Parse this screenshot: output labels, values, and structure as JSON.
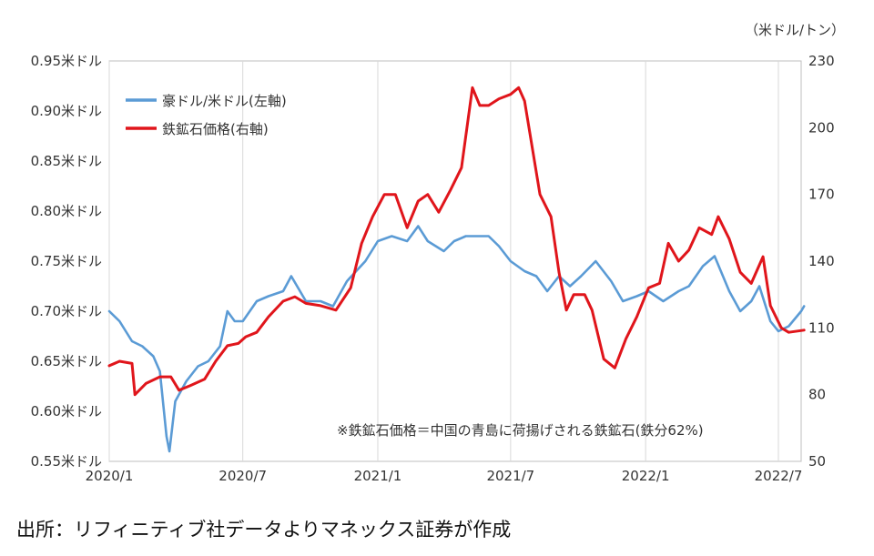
{
  "chart_data": {
    "type": "line",
    "right_axis_unit": "（米ドル/トン）",
    "x_ticks": [
      "2020/1",
      "2020/7",
      "2021/1",
      "2021/7",
      "2022/1",
      "2022/7"
    ],
    "x_tick_dates": [
      "2020-01",
      "2020-07",
      "2021-01",
      "2021-07",
      "2022-01",
      "2022-07"
    ],
    "x_range": [
      "2020-01",
      "2022-08"
    ],
    "left_axis": {
      "ylim": [
        0.55,
        0.95
      ],
      "ticks": [
        0.55,
        0.6,
        0.65,
        0.7,
        0.75,
        0.8,
        0.85,
        0.9,
        0.95
      ],
      "tick_labels": [
        "0.55米ドル",
        "0.60米ドル",
        "0.65米ドル",
        "0.70米ドル",
        "0.75米ドル",
        "0.80米ドル",
        "0.85米ドル",
        "0.90米ドル",
        "0.95米ドル"
      ]
    },
    "right_axis": {
      "ylim": [
        50,
        230
      ],
      "ticks": [
        50,
        80,
        110,
        140,
        170,
        200,
        230
      ],
      "tick_labels": [
        "50",
        "80",
        "110",
        "140",
        "170",
        "200",
        "230"
      ]
    },
    "grid": "vertical",
    "legend_position": "top-left",
    "series": [
      {
        "name": "豪ドル/米ドル(左軸)",
        "axis": "left",
        "color": "#5b9bd5",
        "points": [
          [
            "2020-01-01",
            0.7
          ],
          [
            "2020-01-15",
            0.69
          ],
          [
            "2020-02-01",
            0.67
          ],
          [
            "2020-02-15",
            0.665
          ],
          [
            "2020-03-01",
            0.655
          ],
          [
            "2020-03-10",
            0.64
          ],
          [
            "2020-03-19",
            0.575
          ],
          [
            "2020-03-23",
            0.56
          ],
          [
            "2020-03-31",
            0.61
          ],
          [
            "2020-04-15",
            0.63
          ],
          [
            "2020-05-01",
            0.645
          ],
          [
            "2020-05-15",
            0.65
          ],
          [
            "2020-05-31",
            0.665
          ],
          [
            "2020-06-10",
            0.7
          ],
          [
            "2020-06-20",
            0.69
          ],
          [
            "2020-07-01",
            0.69
          ],
          [
            "2020-07-20",
            0.71
          ],
          [
            "2020-08-05",
            0.715
          ],
          [
            "2020-08-25",
            0.72
          ],
          [
            "2020-09-05",
            0.735
          ],
          [
            "2020-09-25",
            0.71
          ],
          [
            "2020-10-15",
            0.71
          ],
          [
            "2020-11-01",
            0.705
          ],
          [
            "2020-11-20",
            0.73
          ],
          [
            "2020-12-15",
            0.75
          ],
          [
            "2021-01-01",
            0.77
          ],
          [
            "2021-01-20",
            0.775
          ],
          [
            "2021-02-10",
            0.77
          ],
          [
            "2021-02-25",
            0.785
          ],
          [
            "2021-03-10",
            0.77
          ],
          [
            "2021-04-01",
            0.76
          ],
          [
            "2021-04-15",
            0.77
          ],
          [
            "2021-05-01",
            0.775
          ],
          [
            "2021-05-20",
            0.775
          ],
          [
            "2021-06-01",
            0.775
          ],
          [
            "2021-06-15",
            0.765
          ],
          [
            "2021-07-01",
            0.75
          ],
          [
            "2021-07-20",
            0.74
          ],
          [
            "2021-08-05",
            0.735
          ],
          [
            "2021-08-20",
            0.72
          ],
          [
            "2021-09-05",
            0.735
          ],
          [
            "2021-09-20",
            0.725
          ],
          [
            "2021-10-05",
            0.735
          ],
          [
            "2021-10-25",
            0.75
          ],
          [
            "2021-11-15",
            0.73
          ],
          [
            "2021-12-01",
            0.71
          ],
          [
            "2021-12-20",
            0.715
          ],
          [
            "2022-01-05",
            0.72
          ],
          [
            "2022-01-25",
            0.71
          ],
          [
            "2022-02-15",
            0.72
          ],
          [
            "2022-03-01",
            0.725
          ],
          [
            "2022-03-20",
            0.745
          ],
          [
            "2022-04-05",
            0.755
          ],
          [
            "2022-04-25",
            0.72
          ],
          [
            "2022-05-10",
            0.7
          ],
          [
            "2022-05-25",
            0.71
          ],
          [
            "2022-06-05",
            0.725
          ],
          [
            "2022-06-20",
            0.69
          ],
          [
            "2022-07-01",
            0.68
          ],
          [
            "2022-07-15",
            0.685
          ],
          [
            "2022-08-01",
            0.7
          ],
          [
            "2022-08-05",
            0.705
          ]
        ]
      },
      {
        "name": "鉄鉱石価格(右軸)",
        "axis": "right",
        "color": "#e0151b",
        "points": [
          [
            "2020-01-01",
            93
          ],
          [
            "2020-01-15",
            95
          ],
          [
            "2020-02-01",
            94
          ],
          [
            "2020-02-05",
            80
          ],
          [
            "2020-02-20",
            85
          ],
          [
            "2020-03-10",
            88
          ],
          [
            "2020-03-25",
            88
          ],
          [
            "2020-04-05",
            82
          ],
          [
            "2020-04-20",
            84
          ],
          [
            "2020-05-10",
            87
          ],
          [
            "2020-05-25",
            95
          ],
          [
            "2020-06-10",
            102
          ],
          [
            "2020-06-25",
            103
          ],
          [
            "2020-07-05",
            106
          ],
          [
            "2020-07-20",
            108
          ],
          [
            "2020-08-05",
            115
          ],
          [
            "2020-08-25",
            122
          ],
          [
            "2020-09-10",
            124
          ],
          [
            "2020-09-25",
            121
          ],
          [
            "2020-10-15",
            120
          ],
          [
            "2020-11-05",
            118
          ],
          [
            "2020-11-25",
            128
          ],
          [
            "2020-12-10",
            148
          ],
          [
            "2020-12-25",
            160
          ],
          [
            "2021-01-10",
            170
          ],
          [
            "2021-01-25",
            170
          ],
          [
            "2021-02-10",
            155
          ],
          [
            "2021-02-25",
            167
          ],
          [
            "2021-03-10",
            170
          ],
          [
            "2021-03-25",
            162
          ],
          [
            "2021-04-10",
            172
          ],
          [
            "2021-04-25",
            182
          ],
          [
            "2021-05-10",
            218
          ],
          [
            "2021-05-20",
            210
          ],
          [
            "2021-06-01",
            210
          ],
          [
            "2021-06-15",
            213
          ],
          [
            "2021-07-01",
            215
          ],
          [
            "2021-07-12",
            218
          ],
          [
            "2021-07-20",
            212
          ],
          [
            "2021-08-10",
            170
          ],
          [
            "2021-08-25",
            160
          ],
          [
            "2021-09-05",
            135
          ],
          [
            "2021-09-15",
            118
          ],
          [
            "2021-09-25",
            125
          ],
          [
            "2021-10-10",
            125
          ],
          [
            "2021-10-20",
            118
          ],
          [
            "2021-11-05",
            96
          ],
          [
            "2021-11-20",
            92
          ],
          [
            "2021-12-05",
            105
          ],
          [
            "2021-12-20",
            115
          ],
          [
            "2022-01-05",
            128
          ],
          [
            "2022-01-20",
            130
          ],
          [
            "2022-02-01",
            148
          ],
          [
            "2022-02-15",
            140
          ],
          [
            "2022-03-01",
            145
          ],
          [
            "2022-03-15",
            155
          ],
          [
            "2022-04-01",
            152
          ],
          [
            "2022-04-10",
            160
          ],
          [
            "2022-04-25",
            150
          ],
          [
            "2022-05-10",
            135
          ],
          [
            "2022-05-25",
            130
          ],
          [
            "2022-06-10",
            142
          ],
          [
            "2022-06-20",
            120
          ],
          [
            "2022-07-05",
            110
          ],
          [
            "2022-07-15",
            108
          ],
          [
            "2022-08-05",
            109
          ]
        ]
      }
    ],
    "annotation": "※鉄鉱石価格＝中国の青島に荷揚げされる鉄鉱石(鉄分62%)"
  },
  "source_note": "出所：リフィニティブ社データよりマネックス証券が作成"
}
